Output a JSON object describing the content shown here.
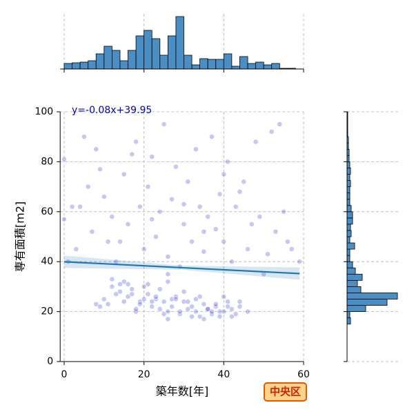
{
  "chart_data": {
    "type": "joint",
    "xlabel": "築年数[年]",
    "ylabel": "専有面積[m2]",
    "annotation": "y=-0.08x+39.95",
    "badge": "中央区",
    "xlim": [
      -1,
      60
    ],
    "ylim": [
      0,
      100
    ],
    "xticks": [
      0,
      20,
      40,
      60
    ],
    "yticks": [
      0,
      20,
      40,
      60,
      80,
      100
    ],
    "grid": true,
    "scatter": {
      "color": "#0000cd",
      "x": [
        10,
        12,
        14,
        15,
        16,
        17,
        18,
        19,
        20,
        21,
        22,
        23,
        24,
        25,
        26,
        27,
        28,
        29,
        30,
        31,
        32,
        33,
        34,
        35,
        36,
        37,
        38,
        39,
        40,
        41,
        42,
        43,
        44,
        46,
        11,
        13,
        16,
        18,
        20,
        22,
        24,
        26,
        28,
        30,
        32,
        34,
        36,
        38,
        40,
        42,
        9,
        12,
        15,
        19,
        21,
        23,
        25,
        27,
        29,
        31,
        33,
        35,
        37,
        39,
        41,
        44,
        8,
        14,
        17,
        26,
        0,
        0,
        2,
        3,
        5,
        6,
        7,
        8,
        10,
        11,
        12,
        13,
        15,
        16,
        18,
        19,
        20,
        21,
        22,
        23,
        24,
        25,
        26,
        27,
        28,
        29,
        30,
        31,
        32,
        33,
        34,
        35,
        36,
        37,
        38,
        39,
        40,
        41,
        42,
        43,
        45,
        46,
        47,
        48,
        50,
        52,
        53,
        55,
        57,
        59,
        1,
        4,
        9,
        14,
        17,
        22,
        26,
        30,
        35,
        40,
        44,
        49,
        51,
        54,
        56
      ],
      "y": [
        25,
        30,
        28,
        32,
        26,
        29,
        20,
        24,
        25,
        27,
        22,
        25,
        21,
        24,
        20,
        25,
        26,
        19,
        24,
        21,
        22,
        20,
        18,
        23,
        21,
        19,
        22,
        20,
        20,
        24,
        21,
        19,
        22,
        20,
        23,
        27,
        31,
        21,
        30,
        24,
        29,
        17,
        25,
        28,
        18,
        26,
        21,
        23,
        26,
        18,
        22,
        33,
        24,
        23,
        31,
        26,
        19,
        22,
        20,
        24,
        25,
        17,
        20,
        18,
        22,
        24,
        23,
        31,
        27,
        32,
        81,
        57,
        62,
        45,
        90,
        70,
        52,
        85,
        66,
        48,
        58,
        40,
        75,
        55,
        88,
        62,
        45,
        70,
        82,
        50,
        60,
        95,
        42,
        65,
        78,
        38,
        55,
        72,
        48,
        85,
        62,
        44,
        58,
        90,
        53,
        67,
        48,
        80,
        40,
        62,
        72,
        45,
        55,
        88,
        35,
        92,
        52,
        60,
        45,
        40,
        40,
        62,
        77,
        48,
        83,
        57,
        35,
        63,
        52,
        75,
        68,
        58,
        43,
        95,
        48
      ]
    },
    "regression": {
      "slope": -0.08,
      "intercept": 39.95,
      "color": "#1f77b4"
    },
    "top_hist": {
      "color": "#4a8ec4",
      "bins": [
        0,
        2,
        4,
        6,
        8,
        10,
        12,
        14,
        16,
        18,
        20,
        22,
        24,
        26,
        28,
        30,
        32,
        34,
        36,
        38,
        40,
        42,
        44,
        46,
        48,
        50,
        52,
        54,
        56,
        58,
        60
      ],
      "counts": [
        8,
        9,
        10,
        12,
        22,
        33,
        27,
        12,
        27,
        48,
        56,
        44,
        20,
        48,
        76,
        20,
        6,
        15,
        14,
        14,
        22,
        4,
        18,
        8,
        10,
        6,
        8,
        1,
        1,
        0
      ],
      "ylim": [
        0,
        80
      ]
    },
    "right_hist": {
      "color": "#4a8ec4",
      "bins": [
        15,
        17.5,
        20,
        22.5,
        25,
        27.5,
        30,
        32.5,
        35,
        37.5,
        40,
        42.5,
        45,
        47.5,
        50,
        52.5,
        55,
        57.5,
        60,
        62.5,
        65,
        67.5,
        70,
        72.5,
        75,
        77.5,
        80,
        82.5,
        85,
        87.5,
        90,
        92.5,
        95,
        97.5,
        100
      ],
      "counts": [
        5,
        4,
        27,
        58,
        73,
        20,
        15,
        22,
        12,
        8,
        4,
        4,
        11,
        4,
        6,
        5,
        8,
        8,
        6,
        4,
        4,
        4,
        5,
        4,
        5,
        4,
        3,
        3,
        2,
        2,
        1,
        1,
        1,
        1
      ],
      "xlim": [
        0,
        75
      ]
    }
  }
}
